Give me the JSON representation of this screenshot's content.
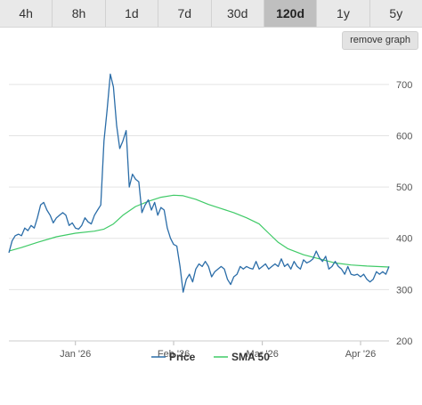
{
  "range_tabs": [
    {
      "label": "4h",
      "active": false
    },
    {
      "label": "8h",
      "active": false
    },
    {
      "label": "1d",
      "active": false
    },
    {
      "label": "7d",
      "active": false
    },
    {
      "label": "30d",
      "active": false
    },
    {
      "label": "120d",
      "active": true
    },
    {
      "label": "1y",
      "active": false
    },
    {
      "label": "5y",
      "active": false
    }
  ],
  "remove_graph_label": "remove graph",
  "chart_data": {
    "type": "line",
    "title": "",
    "xlabel": "",
    "ylabel": "",
    "ylim": [
      200,
      750
    ],
    "yticks": [
      200,
      300,
      400,
      500,
      600,
      700
    ],
    "xlim": [
      "2025-12-11",
      "2026-04-10"
    ],
    "xticks": [
      {
        "date": "2026-01-01",
        "label": "Jan '26"
      },
      {
        "date": "2026-02-01",
        "label": "Feb '26"
      },
      {
        "date": "2026-03-01",
        "label": "Mar '26"
      },
      {
        "date": "2026-04-01",
        "label": "Apr '26"
      }
    ],
    "grid": true,
    "legend_position": "bottom",
    "series": [
      {
        "name": "Price",
        "color": "#2b6da8",
        "points": [
          [
            "2025-12-11",
            372
          ],
          [
            "2025-12-12",
            395
          ],
          [
            "2025-12-13",
            405
          ],
          [
            "2025-12-14",
            408
          ],
          [
            "2025-12-15",
            405
          ],
          [
            "2025-12-16",
            420
          ],
          [
            "2025-12-17",
            415
          ],
          [
            "2025-12-18",
            425
          ],
          [
            "2025-12-19",
            420
          ],
          [
            "2025-12-20",
            440
          ],
          [
            "2025-12-21",
            465
          ],
          [
            "2025-12-22",
            470
          ],
          [
            "2025-12-23",
            455
          ],
          [
            "2025-12-24",
            445
          ],
          [
            "2025-12-25",
            430
          ],
          [
            "2025-12-26",
            440
          ],
          [
            "2025-12-27",
            445
          ],
          [
            "2025-12-28",
            450
          ],
          [
            "2025-12-29",
            445
          ],
          [
            "2025-12-30",
            425
          ],
          [
            "2025-12-31",
            430
          ],
          [
            "2026-01-01",
            420
          ],
          [
            "2026-01-02",
            418
          ],
          [
            "2026-01-03",
            425
          ],
          [
            "2026-01-04",
            440
          ],
          [
            "2026-01-05",
            432
          ],
          [
            "2026-01-06",
            428
          ],
          [
            "2026-01-07",
            445
          ],
          [
            "2026-01-08",
            455
          ],
          [
            "2026-01-09",
            465
          ],
          [
            "2026-01-10",
            590
          ],
          [
            "2026-01-11",
            650
          ],
          [
            "2026-01-12",
            720
          ],
          [
            "2026-01-13",
            695
          ],
          [
            "2026-01-14",
            620
          ],
          [
            "2026-01-15",
            575
          ],
          [
            "2026-01-16",
            590
          ],
          [
            "2026-01-17",
            610
          ],
          [
            "2026-01-18",
            500
          ],
          [
            "2026-01-19",
            525
          ],
          [
            "2026-01-20",
            515
          ],
          [
            "2026-01-21",
            510
          ],
          [
            "2026-01-22",
            450
          ],
          [
            "2026-01-23",
            465
          ],
          [
            "2026-01-24",
            475
          ],
          [
            "2026-01-25",
            455
          ],
          [
            "2026-01-26",
            470
          ],
          [
            "2026-01-27",
            445
          ],
          [
            "2026-01-28",
            460
          ],
          [
            "2026-01-29",
            455
          ],
          [
            "2026-01-30",
            420
          ],
          [
            "2026-01-31",
            400
          ],
          [
            "2026-02-01",
            388
          ],
          [
            "2026-02-02",
            385
          ],
          [
            "2026-02-03",
            345
          ],
          [
            "2026-02-04",
            295
          ],
          [
            "2026-02-05",
            320
          ],
          [
            "2026-02-06",
            330
          ],
          [
            "2026-02-07",
            315
          ],
          [
            "2026-02-08",
            340
          ],
          [
            "2026-02-09",
            350
          ],
          [
            "2026-02-10",
            345
          ],
          [
            "2026-02-11",
            355
          ],
          [
            "2026-02-12",
            345
          ],
          [
            "2026-02-13",
            325
          ],
          [
            "2026-02-14",
            335
          ],
          [
            "2026-02-15",
            340
          ],
          [
            "2026-02-16",
            345
          ],
          [
            "2026-02-17",
            340
          ],
          [
            "2026-02-18",
            320
          ],
          [
            "2026-02-19",
            310
          ],
          [
            "2026-02-20",
            325
          ],
          [
            "2026-02-21",
            330
          ],
          [
            "2026-02-22",
            345
          ],
          [
            "2026-02-23",
            340
          ],
          [
            "2026-02-24",
            345
          ],
          [
            "2026-02-25",
            342
          ],
          [
            "2026-02-26",
            340
          ],
          [
            "2026-02-27",
            355
          ],
          [
            "2026-02-28",
            340
          ],
          [
            "2026-03-01",
            345
          ],
          [
            "2026-03-02",
            350
          ],
          [
            "2026-03-03",
            340
          ],
          [
            "2026-03-04",
            345
          ],
          [
            "2026-03-05",
            350
          ],
          [
            "2026-03-06",
            345
          ],
          [
            "2026-03-07",
            360
          ],
          [
            "2026-03-08",
            345
          ],
          [
            "2026-03-09",
            350
          ],
          [
            "2026-03-10",
            340
          ],
          [
            "2026-03-11",
            355
          ],
          [
            "2026-03-12",
            345
          ],
          [
            "2026-03-13",
            340
          ],
          [
            "2026-03-14",
            358
          ],
          [
            "2026-03-15",
            352
          ],
          [
            "2026-03-16",
            355
          ],
          [
            "2026-03-17",
            360
          ],
          [
            "2026-03-18",
            375
          ],
          [
            "2026-03-19",
            362
          ],
          [
            "2026-03-20",
            355
          ],
          [
            "2026-03-21",
            365
          ],
          [
            "2026-03-22",
            340
          ],
          [
            "2026-03-23",
            345
          ],
          [
            "2026-03-24",
            355
          ],
          [
            "2026-03-25",
            345
          ],
          [
            "2026-03-26",
            340
          ],
          [
            "2026-03-27",
            330
          ],
          [
            "2026-03-28",
            345
          ],
          [
            "2026-03-29",
            330
          ],
          [
            "2026-03-30",
            328
          ],
          [
            "2026-03-31",
            330
          ],
          [
            "2026-04-01",
            325
          ],
          [
            "2026-04-02",
            330
          ],
          [
            "2026-04-03",
            320
          ],
          [
            "2026-04-04",
            315
          ],
          [
            "2026-04-05",
            320
          ],
          [
            "2026-04-06",
            335
          ],
          [
            "2026-04-07",
            330
          ],
          [
            "2026-04-08",
            335
          ],
          [
            "2026-04-09",
            330
          ],
          [
            "2026-04-10",
            345
          ]
        ]
      },
      {
        "name": "SMA 50",
        "color": "#3fca67",
        "points": [
          [
            "2025-12-11",
            375
          ],
          [
            "2025-12-15",
            382
          ],
          [
            "2025-12-20",
            392
          ],
          [
            "2025-12-26",
            403
          ],
          [
            "2026-01-01",
            410
          ],
          [
            "2026-01-07",
            414
          ],
          [
            "2026-01-10",
            418
          ],
          [
            "2026-01-13",
            428
          ],
          [
            "2026-01-16",
            445
          ],
          [
            "2026-01-20",
            462
          ],
          [
            "2026-01-24",
            472
          ],
          [
            "2026-01-28",
            480
          ],
          [
            "2026-02-01",
            484
          ],
          [
            "2026-02-04",
            483
          ],
          [
            "2026-02-08",
            476
          ],
          [
            "2026-02-12",
            466
          ],
          [
            "2026-02-16",
            458
          ],
          [
            "2026-02-20",
            450
          ],
          [
            "2026-02-24",
            440
          ],
          [
            "2026-02-28",
            428
          ],
          [
            "2026-03-03",
            410
          ],
          [
            "2026-03-06",
            392
          ],
          [
            "2026-03-09",
            380
          ],
          [
            "2026-03-14",
            368
          ],
          [
            "2026-03-19",
            360
          ],
          [
            "2026-03-24",
            352
          ],
          [
            "2026-03-29",
            348
          ],
          [
            "2026-04-03",
            346
          ],
          [
            "2026-04-10",
            344
          ]
        ]
      }
    ]
  }
}
